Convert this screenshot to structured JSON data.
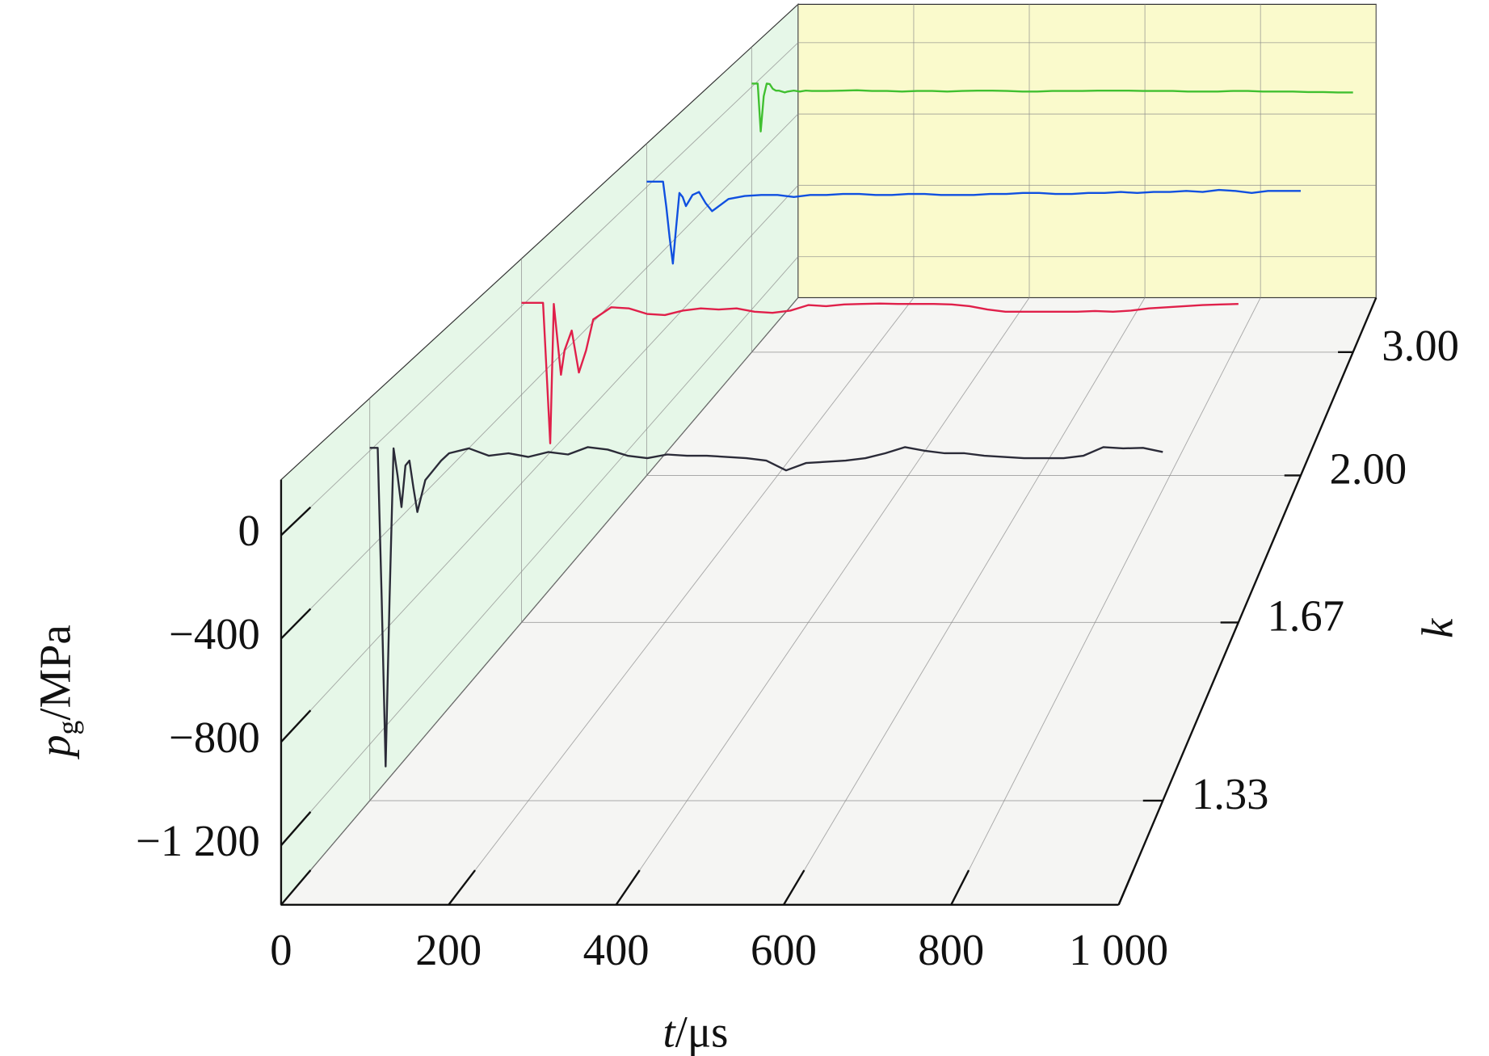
{
  "chart_data": {
    "type": "line3d",
    "x_label": {
      "symbol": "t",
      "unit": "/μs"
    },
    "y_label": {
      "symbol": "p",
      "subscript": "g",
      "unit": "/MPa"
    },
    "z_label": "k",
    "xlim": [
      0,
      1000
    ],
    "xticks": [
      0,
      200,
      400,
      600,
      800,
      {
        "value": 1000,
        "label": "1 000"
      }
    ],
    "ylim": [
      -1430,
      215
    ],
    "yticks": [
      {
        "value": -1200,
        "label": "−1 200"
      },
      {
        "value": -800,
        "label": "−800"
      },
      {
        "value": -400,
        "label": "−400"
      },
      0
    ],
    "z_categories": [
      "1.33",
      "1.67",
      "2.00",
      "3.00"
    ],
    "grid": true,
    "wall_colors": {
      "left": "#e6f7e8",
      "back": "#fafacc",
      "floor": "#f5f5f3"
    },
    "x": [
      0,
      5,
      10,
      15,
      20,
      25,
      30,
      35,
      40,
      45,
      50,
      55,
      60,
      70,
      80,
      90,
      100,
      125,
      150,
      175,
      200,
      225,
      250,
      275,
      300,
      325,
      350,
      375,
      400,
      425,
      450,
      475,
      500,
      525,
      550,
      575,
      600,
      625,
      650,
      675,
      700,
      725,
      750,
      775,
      800,
      825,
      850,
      875,
      900,
      925,
      950,
      975,
      1000
    ],
    "series": [
      {
        "color": "#2b2b38",
        "values": [
          12,
          12,
          12,
          -600,
          -1290,
          -600,
          10,
          -100,
          -230,
          -60,
          -40,
          -150,
          -250,
          -120,
          -80,
          -40,
          -10,
          10,
          -20,
          -10,
          -25,
          -5,
          -15,
          15,
          5,
          -20,
          -30,
          -15,
          -20,
          -20,
          -25,
          -30,
          -40,
          -80,
          -50,
          -45,
          -40,
          -30,
          -10,
          15,
          0,
          -10,
          -10,
          -20,
          -25,
          -30,
          -30,
          -30,
          -20,
          15,
          10,
          12,
          -5
        ]
      },
      {
        "color": "#e0204a",
        "values": [
          15,
          15,
          15,
          15,
          15,
          15,
          15,
          -300,
          -620,
          10,
          -150,
          -310,
          -200,
          -110,
          -300,
          -200,
          -60,
          -5,
          -10,
          -35,
          -40,
          -20,
          -10,
          -15,
          -10,
          -25,
          -30,
          -20,
          5,
          0,
          8,
          10,
          12,
          10,
          10,
          10,
          8,
          0,
          -15,
          -25,
          -25,
          -25,
          -25,
          -25,
          -22,
          -25,
          -20,
          -10,
          -5,
          0,
          5,
          8,
          10
        ]
      },
      {
        "color": "#1050e0",
        "values": [
          26,
          26,
          26,
          26,
          26,
          26,
          -100,
          -250,
          -380,
          -200,
          -30,
          -50,
          -95,
          -40,
          -25,
          -80,
          -120,
          -60,
          -45,
          -40,
          -40,
          -50,
          -40,
          -40,
          -35,
          -35,
          -40,
          -40,
          -35,
          -35,
          -40,
          -40,
          -40,
          -35,
          -35,
          -30,
          -30,
          -35,
          -35,
          -30,
          -30,
          -25,
          -30,
          -25,
          -25,
          -20,
          -25,
          -15,
          -20,
          -30,
          -20,
          -20,
          -20
        ]
      },
      {
        "color": "#40c030",
        "values": [
          18,
          18,
          18,
          -240,
          -50,
          18,
          15,
          -10,
          -20,
          -20,
          -25,
          -30,
          -25,
          -20,
          -25,
          -20,
          -22,
          -22,
          -20,
          -18,
          -22,
          -22,
          -25,
          -22,
          -22,
          -25,
          -22,
          -20,
          -20,
          -22,
          -25,
          -25,
          -22,
          -22,
          -22,
          -20,
          -20,
          -20,
          -22,
          -22,
          -22,
          -25,
          -25,
          -25,
          -22,
          -22,
          -25,
          -25,
          -25,
          -28,
          -28,
          -30,
          -30
        ]
      }
    ]
  }
}
